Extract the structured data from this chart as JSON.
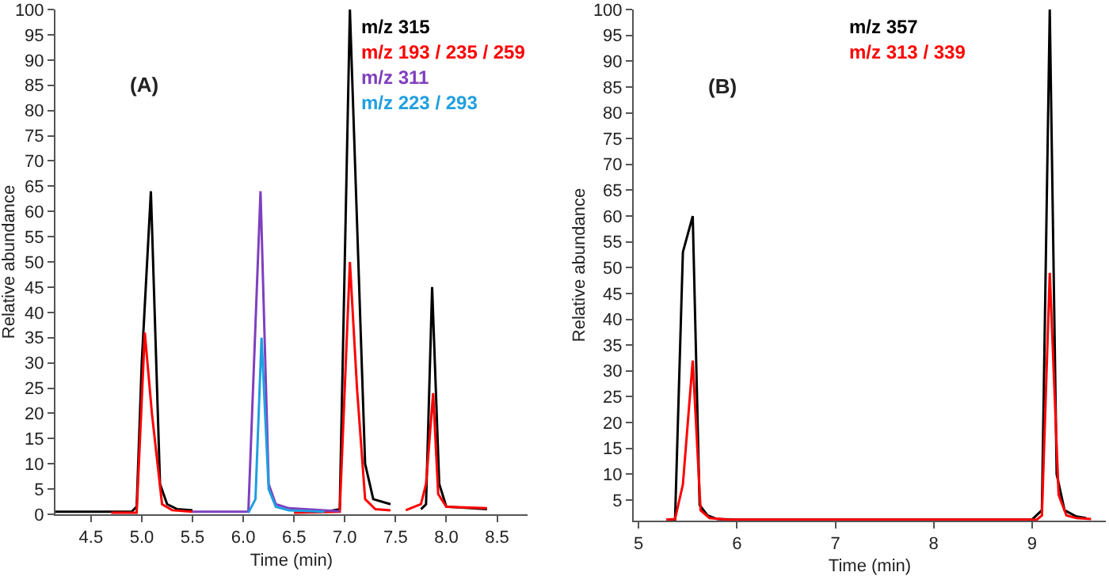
{
  "chart_data": [
    {
      "type": "line",
      "xlabel": "Time (min)",
      "ylabel": "Relative abundance",
      "annotations": [
        "(A)"
      ],
      "legend": "top right",
      "grid": false,
      "xlim": [
        4.15,
        8.8
      ],
      "xticks": [
        {
          "value": 4.5,
          "label": "4.5"
        },
        {
          "value": 5,
          "label": "5.0"
        },
        {
          "value": 5.5,
          "label": "5.5"
        },
        {
          "value": 6,
          "label": "6.0"
        },
        {
          "value": 6.5,
          "label": "6.5"
        },
        {
          "value": 7,
          "label": "7.0"
        },
        {
          "value": 7.5,
          "label": "7.5"
        },
        {
          "value": 8,
          "label": "8.0"
        },
        {
          "value": 8.5,
          "label": "8.5"
        }
      ],
      "ylim": [
        0,
        100
      ],
      "yticks": [
        0,
        5,
        10,
        15,
        20,
        25,
        30,
        35,
        40,
        45,
        50,
        55,
        60,
        65,
        70,
        75,
        80,
        85,
        90,
        95,
        100
      ],
      "series": [
        {
          "name": "m/z 315",
          "color": "#000000",
          "x": [
            4.15,
            4.9,
            4.95,
            5.0,
            5.09,
            5.18,
            5.25,
            5.35,
            5.5,
            5.6,
            6.8,
            6.95,
            7.05,
            7.2,
            7.28,
            7.45,
            7.6,
            7.75,
            7.8,
            7.86,
            7.93,
            8.0,
            8.4
          ],
          "values": [
            0.5,
            0.5,
            1.5,
            30,
            64,
            6,
            2,
            1,
            0.8,
            null,
            0.5,
            1,
            100,
            10,
            3,
            2,
            null,
            1,
            2,
            45,
            6,
            1.5,
            1
          ]
        },
        {
          "name": "m/z 193 / 235 / 259",
          "color": "#ff0000",
          "x": [
            4.7,
            4.95,
            5.03,
            5.1,
            5.2,
            5.3,
            5.5,
            5.6,
            6.5,
            6.95,
            7.05,
            7.12,
            7.2,
            7.3,
            7.45,
            7.5,
            7.6,
            7.75,
            7.8,
            7.87,
            7.92,
            8.0,
            8.4
          ],
          "values": [
            0.3,
            0.3,
            36,
            20,
            2,
            0.8,
            0.5,
            null,
            0.3,
            0.5,
            50,
            25,
            3,
            1,
            0.8,
            null,
            0.8,
            2,
            6,
            24,
            4,
            1.5,
            1.2
          ]
        },
        {
          "name": "m/z 311",
          "color": "#7f3fbf",
          "x": [
            5.5,
            6.05,
            6.17,
            6.25,
            6.32,
            6.45,
            6.8,
            6.95
          ],
          "values": [
            0.5,
            0.5,
            64,
            6,
            2,
            1.2,
            0.8,
            0.6
          ]
        },
        {
          "name": "m/z 223 / 293",
          "color": "#1f9fe0",
          "x": [
            6.05,
            6.12,
            6.18,
            6.25,
            6.32,
            6.45,
            6.8
          ],
          "values": [
            0.3,
            3,
            35,
            5,
            1.5,
            0.8,
            0.5
          ]
        }
      ]
    },
    {
      "type": "line",
      "xlabel": "Time (min)",
      "ylabel": "Relative abundance",
      "annotations": [
        "(B)"
      ],
      "legend": "top",
      "grid": false,
      "xlim": [
        4.95,
        9.75
      ],
      "xticks": [
        5,
        6,
        7,
        8,
        9
      ],
      "ylim": [
        1,
        100
      ],
      "yticks": [
        5,
        10,
        15,
        20,
        25,
        30,
        35,
        40,
        45,
        50,
        55,
        60,
        65,
        70,
        75,
        80,
        85,
        90,
        95,
        100
      ],
      "series": [
        {
          "name": "m/z 357",
          "color": "#000000",
          "x": [
            5.3,
            5.37,
            5.45,
            5.55,
            5.62,
            5.7,
            5.8,
            6.0,
            9.0,
            9.1,
            9.18,
            9.25,
            9.33,
            9.45,
            9.55
          ],
          "values": [
            1,
            1,
            53,
            60,
            4,
            2,
            1.3,
            1.2,
            1.2,
            3,
            100,
            10,
            3,
            1.8,
            1.5
          ]
        },
        {
          "name": "m/z 313 / 339",
          "color": "#ff0000",
          "x": [
            5.28,
            5.37,
            5.45,
            5.55,
            5.63,
            5.72,
            5.9,
            9.05,
            9.1,
            9.18,
            9.27,
            9.35,
            9.45,
            9.6
          ],
          "values": [
            1.2,
            1.3,
            8,
            32,
            3,
            1.5,
            1.2,
            1.2,
            2,
            49,
            6,
            2,
            1.5,
            1.3
          ]
        }
      ]
    }
  ]
}
